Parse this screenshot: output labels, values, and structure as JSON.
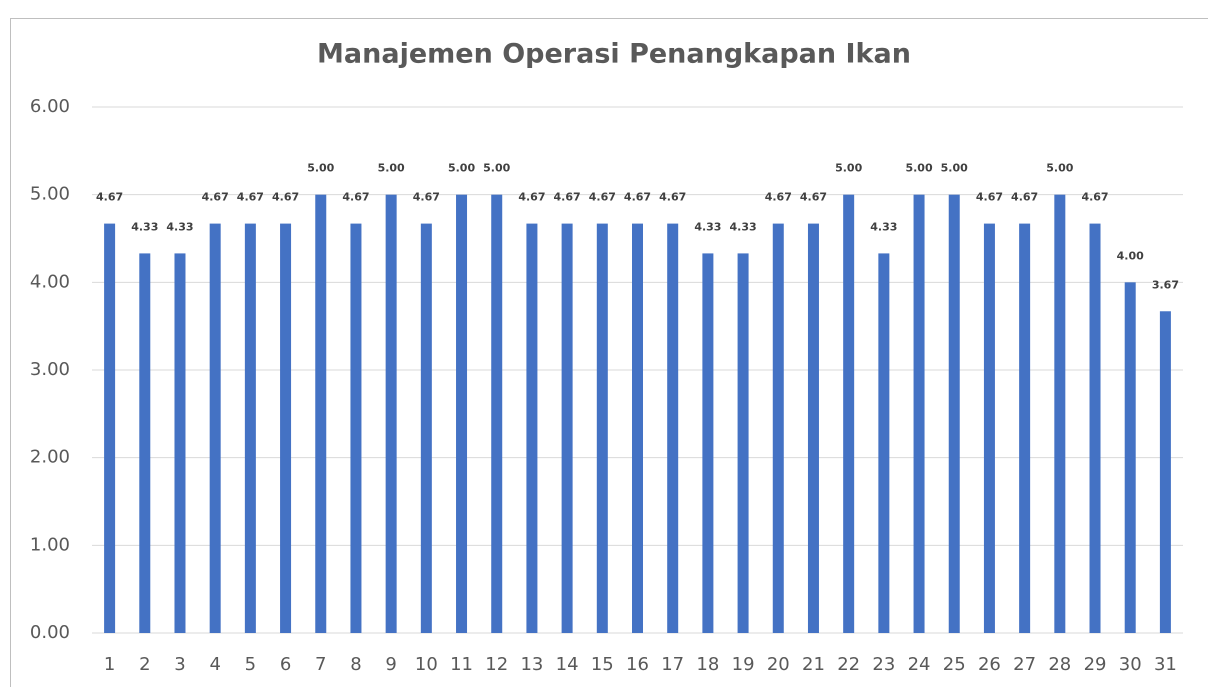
{
  "chart_data": {
    "type": "bar",
    "title": "Manajemen Operasi Penangkapan Ikan",
    "categories": [
      "1",
      "2",
      "3",
      "4",
      "5",
      "6",
      "7",
      "8",
      "9",
      "10",
      "11",
      "12",
      "13",
      "14",
      "15",
      "16",
      "17",
      "18",
      "19",
      "20",
      "21",
      "22",
      "23",
      "24",
      "25",
      "26",
      "27",
      "28",
      "29",
      "30",
      "31"
    ],
    "values": [
      4.67,
      4.33,
      4.33,
      4.67,
      4.67,
      4.67,
      5,
      4.67,
      5,
      4.67,
      5,
      5,
      4.67,
      4.67,
      4.67,
      4.67,
      4.67,
      4.33,
      4.33,
      4.67,
      4.67,
      5,
      4.33,
      5,
      5,
      4.67,
      4.67,
      5,
      4.67,
      4,
      3.67
    ],
    "value_labels": [
      "4.67",
      "4.33",
      "4.33",
      "4.67",
      "4.67",
      "4.67",
      "5.00",
      "4.67",
      "5.00",
      "4.67",
      "5.00",
      "5.00",
      "4.67",
      "4.67",
      "4.67",
      "4.67",
      "4.67",
      "4.33",
      "4.33",
      "4.67",
      "4.67",
      "5.00",
      "4.33",
      "5.00",
      "5.00",
      "4.67",
      "4.67",
      "5.00",
      "4.67",
      "4.00",
      "3.67"
    ],
    "color": "#4472c4",
    "ylim": [
      0,
      6
    ],
    "yticks": [
      {
        "value": 0,
        "label": "0.00"
      },
      {
        "value": 1,
        "label": "1.00"
      },
      {
        "value": 2,
        "label": "2.00"
      },
      {
        "value": 3,
        "label": "3.00"
      },
      {
        "value": 4,
        "label": "4.00"
      },
      {
        "value": 5,
        "label": "5.00"
      },
      {
        "value": 6,
        "label": "6.00"
      }
    ],
    "grid": true
  }
}
